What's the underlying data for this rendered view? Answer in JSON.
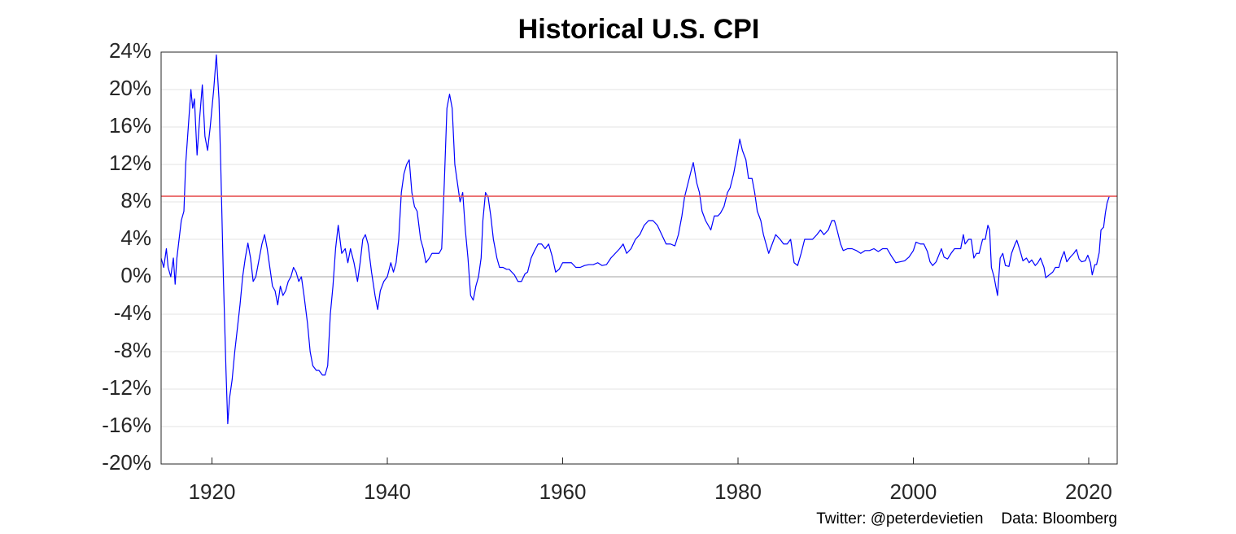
{
  "chart_data": {
    "type": "line",
    "title": "Historical U.S. CPI",
    "footnotes": [
      "Twitter: @peterdevietien",
      "Data: Bloomberg"
    ],
    "xlim": [
      1914.2,
      2023.25
    ],
    "xticks": [
      1920,
      1940,
      1960,
      1980,
      2000,
      2020
    ],
    "ylim": [
      -20,
      24
    ],
    "yticks": [
      {
        "value": -20,
        "label": "-20%"
      },
      {
        "value": -16,
        "label": "-16%"
      },
      {
        "value": -12,
        "label": "-12%"
      },
      {
        "value": -8,
        "label": "-8%"
      },
      {
        "value": -4,
        "label": "-4%"
      },
      {
        "value": 0,
        "label": "0%"
      },
      {
        "value": 4,
        "label": "4%"
      },
      {
        "value": 8,
        "label": "8%"
      },
      {
        "value": 12,
        "label": "12%"
      },
      {
        "value": 16,
        "label": "16%"
      },
      {
        "value": 20,
        "label": "20%"
      },
      {
        "value": 24,
        "label": "24%"
      }
    ],
    "grid": true,
    "reference_line": {
      "value": 8.6,
      "color": "#e8595a"
    },
    "series": [
      {
        "color": "#0000ff",
        "x": [
          1914.2,
          1914.5,
          1914.8,
          1915.0,
          1915.3,
          1915.6,
          1915.8,
          1916.0,
          1916.5,
          1916.8,
          1917.0,
          1917.3,
          1917.6,
          1917.8,
          1918.0,
          1918.3,
          1918.6,
          1918.9,
          1919.2,
          1919.5,
          1919.8,
          1920.2,
          1920.5,
          1920.8,
          1921.0,
          1921.3,
          1921.6,
          1921.8,
          1922.0,
          1922.3,
          1922.6,
          1922.9,
          1923.2,
          1923.5,
          1923.8,
          1924.1,
          1924.4,
          1924.7,
          1925.0,
          1925.4,
          1925.7,
          1926.0,
          1926.3,
          1926.6,
          1926.9,
          1927.2,
          1927.5,
          1927.8,
          1928.1,
          1928.4,
          1928.7,
          1929.0,
          1929.3,
          1929.6,
          1929.9,
          1930.2,
          1930.5,
          1930.9,
          1931.2,
          1931.5,
          1931.9,
          1932.2,
          1932.6,
          1932.9,
          1933.2,
          1933.5,
          1933.8,
          1934.1,
          1934.4,
          1934.8,
          1935.2,
          1935.5,
          1935.8,
          1936.2,
          1936.6,
          1936.9,
          1937.2,
          1937.5,
          1937.8,
          1938.2,
          1938.6,
          1938.9,
          1939.2,
          1939.6,
          1940.0,
          1940.4,
          1940.7,
          1941.0,
          1941.3,
          1941.6,
          1941.9,
          1942.2,
          1942.5,
          1942.8,
          1943.1,
          1943.4,
          1943.8,
          1944.1,
          1944.4,
          1944.8,
          1945.1,
          1945.5,
          1945.9,
          1946.2,
          1946.5,
          1946.8,
          1947.1,
          1947.4,
          1947.7,
          1948.0,
          1948.3,
          1948.6,
          1948.9,
          1949.2,
          1949.5,
          1949.8,
          1950.1,
          1950.4,
          1950.7,
          1950.9,
          1951.2,
          1951.5,
          1951.8,
          1952.1,
          1952.5,
          1952.8,
          1953.2,
          1953.6,
          1953.9,
          1954.2,
          1954.5,
          1954.9,
          1955.3,
          1955.7,
          1956.0,
          1956.4,
          1956.8,
          1957.2,
          1957.6,
          1958.0,
          1958.4,
          1958.8,
          1959.2,
          1959.6,
          1960.0,
          1960.5,
          1961.0,
          1961.5,
          1962.0,
          1962.5,
          1963.0,
          1963.5,
          1964.0,
          1964.5,
          1965.0,
          1965.5,
          1966.0,
          1966.5,
          1966.9,
          1967.3,
          1967.8,
          1968.3,
          1968.8,
          1969.3,
          1969.8,
          1970.3,
          1970.8,
          1971.3,
          1971.8,
          1972.3,
          1972.8,
          1973.2,
          1973.6,
          1973.9,
          1974.3,
          1974.7,
          1974.9,
          1975.3,
          1975.6,
          1975.9,
          1976.3,
          1976.6,
          1976.9,
          1977.3,
          1977.7,
          1978.0,
          1978.4,
          1978.8,
          1979.1,
          1979.5,
          1979.9,
          1980.2,
          1980.5,
          1980.9,
          1981.2,
          1981.6,
          1981.9,
          1982.2,
          1982.6,
          1982.9,
          1983.2,
          1983.5,
          1983.9,
          1984.3,
          1984.8,
          1985.2,
          1985.6,
          1986.0,
          1986.4,
          1986.8,
          1987.2,
          1987.6,
          1988.0,
          1988.5,
          1989.0,
          1989.4,
          1989.8,
          1990.3,
          1990.7,
          1991.0,
          1991.3,
          1991.7,
          1992.0,
          1992.5,
          1993.0,
          1993.5,
          1994.0,
          1994.5,
          1995.0,
          1995.5,
          1996.0,
          1996.5,
          1997.0,
          1997.5,
          1998.0,
          1998.5,
          1999.0,
          1999.5,
          2000.0,
          2000.3,
          2000.8,
          2001.2,
          2001.6,
          2001.9,
          2002.2,
          2002.6,
          2002.9,
          2003.2,
          2003.5,
          2003.9,
          2004.3,
          2004.7,
          2005.0,
          2005.4,
          2005.7,
          2005.9,
          2006.3,
          2006.6,
          2006.9,
          2007.2,
          2007.5,
          2007.9,
          2008.2,
          2008.5,
          2008.7,
          2008.9,
          2009.2,
          2009.5,
          2009.6,
          2009.9,
          2010.2,
          2010.5,
          2010.9,
          2011.2,
          2011.6,
          2011.8,
          2012.2,
          2012.5,
          2012.9,
          2013.2,
          2013.5,
          2013.9,
          2014.2,
          2014.5,
          2014.9,
          2015.1,
          2015.5,
          2015.9,
          2016.2,
          2016.6,
          2016.9,
          2017.2,
          2017.5,
          2017.9,
          2018.3,
          2018.6,
          2018.9,
          2019.2,
          2019.6,
          2019.9,
          2020.2,
          2020.4,
          2020.7,
          2020.9,
          2021.2,
          2021.4,
          2021.7,
          2021.9,
          2022.1,
          2022.35
        ],
        "values": [
          2,
          1,
          3,
          1,
          0,
          2,
          -0.8,
          2,
          6,
          7,
          12,
          16,
          20,
          18,
          19,
          13,
          17,
          20.5,
          15,
          13.5,
          16,
          20,
          23.7,
          19,
          12,
          0,
          -10,
          -15.7,
          -13,
          -11,
          -8,
          -5.5,
          -3,
          0,
          2,
          3.6,
          2,
          -0.5,
          0,
          2,
          3.5,
          4.5,
          3,
          1,
          -1,
          -1.5,
          -3,
          -1,
          -2,
          -1.5,
          -0.5,
          0,
          1,
          0.5,
          -0.5,
          0,
          -2,
          -5,
          -8,
          -9.5,
          -10,
          -10,
          -10.5,
          -10.5,
          -9.5,
          -4,
          -1,
          3,
          5.5,
          2.5,
          3,
          1.5,
          3,
          1.5,
          -0.5,
          1.5,
          4,
          4.5,
          3.5,
          0.5,
          -2,
          -3.5,
          -1.5,
          -0.5,
          0,
          1.5,
          0.5,
          1.5,
          4,
          9,
          11,
          12,
          12.5,
          9,
          7.5,
          7,
          4,
          3,
          1.5,
          2,
          2.5,
          2.5,
          2.5,
          3,
          10,
          18,
          19.5,
          18,
          12,
          10,
          8,
          9,
          5,
          2,
          -2,
          -2.5,
          -1,
          0,
          2,
          6,
          9,
          8.5,
          6.5,
          4,
          2,
          1,
          1,
          0.8,
          0.8,
          0.5,
          0.2,
          -0.5,
          -0.5,
          0.3,
          0.5,
          2,
          2.8,
          3.5,
          3.5,
          3,
          3.5,
          2.2,
          0.5,
          0.8,
          1.5,
          1.5,
          1.5,
          1,
          1,
          1.2,
          1.3,
          1.3,
          1.5,
          1.2,
          1.3,
          2,
          2.5,
          3,
          3.5,
          2.5,
          3,
          4,
          4.5,
          5.5,
          6,
          6,
          5.5,
          4.5,
          3.5,
          3.5,
          3.3,
          4.5,
          6.5,
          8.5,
          10,
          11.5,
          12.2,
          10,
          9,
          7,
          6,
          5.5,
          5,
          6.5,
          6.5,
          6.8,
          7.5,
          9,
          9.5,
          11,
          13,
          14.7,
          13.5,
          12.5,
          10.5,
          10.5,
          9,
          7,
          6,
          4.5,
          3.5,
          2.5,
          3.5,
          4.5,
          4,
          3.5,
          3.5,
          4,
          1.5,
          1.2,
          2.5,
          4,
          4,
          4,
          4.5,
          5,
          4.5,
          5,
          6,
          6,
          5,
          3.5,
          2.8,
          3,
          3,
          2.8,
          2.5,
          2.8,
          2.8,
          3,
          2.7,
          3,
          3,
          2.2,
          1.5,
          1.6,
          1.7,
          2.1,
          2.8,
          3.7,
          3.5,
          3.5,
          2.7,
          1.6,
          1.2,
          1.6,
          2.3,
          3,
          2.1,
          1.9,
          2.5,
          3,
          3,
          3,
          4.5,
          3.5,
          4,
          4,
          2,
          2.5,
          2.5,
          4,
          4,
          5.5,
          5,
          1,
          0,
          -1.5,
          -2,
          2,
          2.5,
          1.2,
          1.1,
          2.5,
          3.5,
          3.9,
          2.7,
          1.7,
          2,
          1.5,
          1.8,
          1.2,
          1.5,
          2,
          1,
          -0.1,
          0.2,
          0.5,
          1,
          1,
          2,
          2.7,
          1.6,
          2.1,
          2.5,
          2.9,
          1.9,
          1.6,
          1.7,
          2.3,
          1.5,
          0.2,
          1.3,
          1.3,
          2.6,
          5,
          5.3,
          6.8,
          7.9,
          8.6
        ]
      }
    ]
  }
}
